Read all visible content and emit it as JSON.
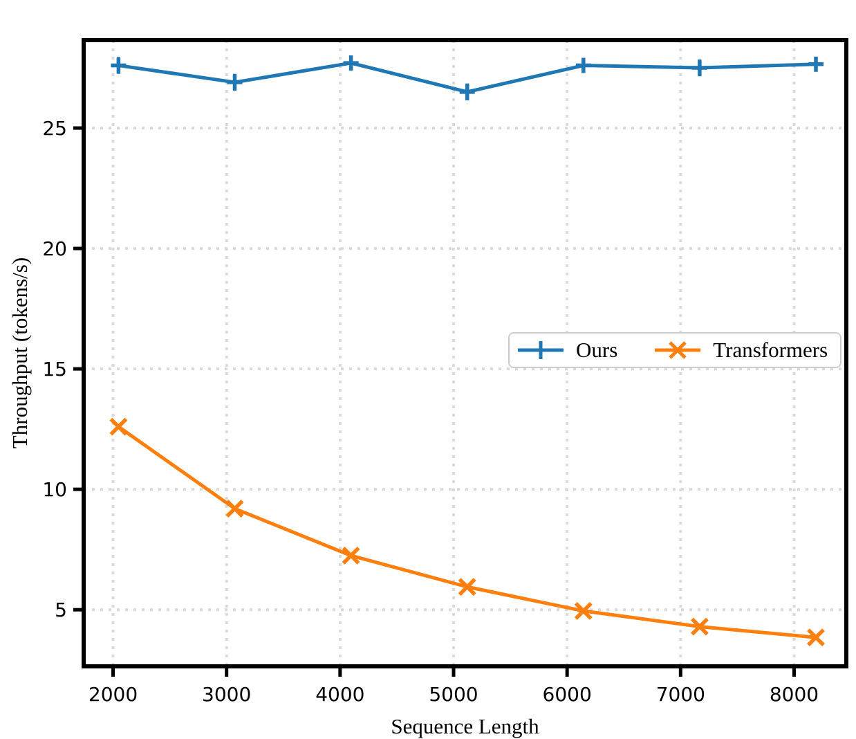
{
  "chart_data": {
    "type": "line",
    "title": "",
    "xlabel": "Sequence Length",
    "ylabel": "Throughput (tokens/s)",
    "x_ticks": [
      2000,
      3000,
      4000,
      5000,
      6000,
      7000,
      8000
    ],
    "y_ticks": [
      5,
      10,
      15,
      20,
      25
    ],
    "xlim": [
      1741,
      8460
    ],
    "ylim": [
      2.65,
      28.65
    ],
    "grid": "dotted",
    "grid_color": "#d9d9d9",
    "legend_position": "center-right",
    "x": [
      2048,
      3072,
      4096,
      5120,
      6144,
      7168,
      8192
    ],
    "series": [
      {
        "name": "Ours",
        "color": "#1f77b4",
        "marker": "plus",
        "values": [
          27.6,
          26.9,
          27.7,
          26.5,
          27.6,
          27.5,
          27.65
        ],
        "yerr": [
          0.35,
          0.35,
          0.3,
          0.35,
          0.3,
          0.35,
          0.3
        ]
      },
      {
        "name": "Transformers",
        "color": "#ff7f0e",
        "marker": "x",
        "values": [
          12.6,
          9.2,
          7.25,
          5.95,
          4.95,
          4.3,
          3.85
        ],
        "yerr": null
      }
    ]
  },
  "colors": {
    "spine": "#000000",
    "tick_label": "#000000",
    "background": "#ffffff",
    "legend_border": "#cccccc"
  }
}
